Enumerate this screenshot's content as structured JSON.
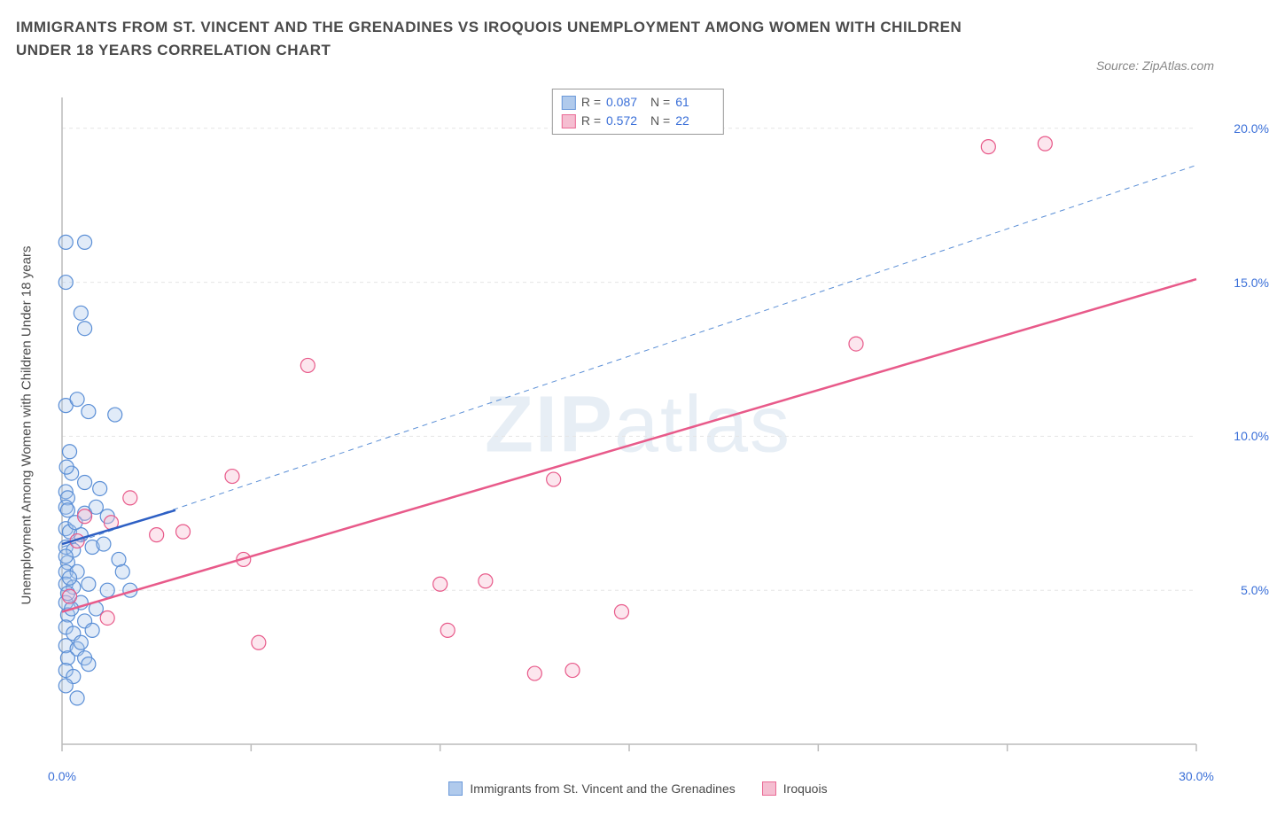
{
  "title": "IMMIGRANTS FROM ST. VINCENT AND THE GRENADINES VS IROQUOIS UNEMPLOYMENT AMONG WOMEN WITH CHILDREN UNDER 18 YEARS CORRELATION CHART",
  "source": "Source: ZipAtlas.com",
  "watermark_bold": "ZIP",
  "watermark_light": "atlas",
  "y_axis_label": "Unemployment Among Women with Children Under 18 years",
  "chart": {
    "type": "scatter",
    "xlim": [
      0,
      30
    ],
    "ylim": [
      0,
      21
    ],
    "x_ticks": [
      0,
      5,
      10,
      15,
      20,
      25,
      30
    ],
    "x_tick_labels": {
      "0": "0.0%",
      "30": "30.0%"
    },
    "y_ticks": [
      5,
      10,
      15,
      20
    ],
    "y_tick_labels": {
      "5": "5.0%",
      "10": "10.0%",
      "15": "15.0%",
      "20": "20.0%"
    },
    "grid_color": "#e5e5e5",
    "grid_dash": "4,4",
    "axis_color": "#bbbbbb",
    "background": "#ffffff",
    "marker_radius": 8,
    "marker_stroke_width": 1.2,
    "fill_opacity": 0.35,
    "series": [
      {
        "name": "Immigrants from St. Vincent and the Grenadines",
        "color_stroke": "#5b8fd6",
        "color_fill": "#a8c5ea",
        "R": "0.087",
        "N": "61",
        "trend_solid": {
          "x1": 0,
          "y1": 6.5,
          "x2": 3,
          "y2": 7.6,
          "width": 2.5,
          "color": "#2d5fc4"
        },
        "trend_dashed": {
          "x1": 0,
          "y1": 6.4,
          "x2": 30,
          "y2": 18.8,
          "width": 1,
          "color": "#5b8fd6",
          "dash": "6,5"
        },
        "points": [
          [
            0.1,
            16.3
          ],
          [
            0.6,
            16.3
          ],
          [
            0.1,
            15.0
          ],
          [
            0.5,
            14.0
          ],
          [
            0.6,
            13.5
          ],
          [
            0.1,
            11.0
          ],
          [
            0.7,
            10.8
          ],
          [
            1.4,
            10.7
          ],
          [
            0.2,
            9.5
          ],
          [
            0.1,
            8.2
          ],
          [
            0.15,
            8.0
          ],
          [
            0.6,
            8.5
          ],
          [
            1.0,
            8.3
          ],
          [
            0.1,
            7.7
          ],
          [
            0.15,
            7.6
          ],
          [
            0.6,
            7.5
          ],
          [
            0.9,
            7.7
          ],
          [
            1.2,
            7.4
          ],
          [
            0.1,
            7.0
          ],
          [
            0.2,
            6.9
          ],
          [
            0.5,
            6.8
          ],
          [
            0.1,
            6.4
          ],
          [
            0.3,
            6.3
          ],
          [
            0.8,
            6.4
          ],
          [
            1.1,
            6.5
          ],
          [
            1.5,
            6.0
          ],
          [
            0.15,
            5.9
          ],
          [
            0.1,
            5.6
          ],
          [
            0.4,
            5.6
          ],
          [
            1.6,
            5.6
          ],
          [
            0.1,
            5.2
          ],
          [
            0.3,
            5.1
          ],
          [
            0.7,
            5.2
          ],
          [
            1.2,
            5.0
          ],
          [
            1.8,
            5.0
          ],
          [
            0.1,
            4.6
          ],
          [
            0.5,
            4.6
          ],
          [
            0.9,
            4.4
          ],
          [
            0.15,
            4.2
          ],
          [
            0.6,
            4.0
          ],
          [
            0.1,
            3.8
          ],
          [
            0.3,
            3.6
          ],
          [
            0.8,
            3.7
          ],
          [
            0.1,
            3.2
          ],
          [
            0.4,
            3.1
          ],
          [
            0.15,
            2.8
          ],
          [
            0.6,
            2.8
          ],
          [
            0.1,
            2.4
          ],
          [
            0.3,
            2.2
          ],
          [
            0.1,
            1.9
          ],
          [
            0.4,
            1.5
          ],
          [
            0.1,
            6.1
          ],
          [
            0.35,
            7.2
          ],
          [
            0.25,
            8.8
          ],
          [
            0.15,
            4.9
          ],
          [
            0.5,
            3.3
          ],
          [
            0.7,
            2.6
          ],
          [
            0.2,
            5.4
          ],
          [
            0.12,
            9.0
          ],
          [
            0.4,
            11.2
          ],
          [
            0.25,
            4.4
          ]
        ]
      },
      {
        "name": "Iroquois",
        "color_stroke": "#e85a8a",
        "color_fill": "#f5b8cd",
        "R": "0.572",
        "N": "22",
        "trend_solid": {
          "x1": 0,
          "y1": 4.3,
          "x2": 30,
          "y2": 15.1,
          "width": 2.5,
          "color": "#e85a8a"
        },
        "points": [
          [
            0.6,
            7.4
          ],
          [
            1.3,
            7.2
          ],
          [
            1.8,
            8.0
          ],
          [
            0.4,
            6.6
          ],
          [
            2.5,
            6.8
          ],
          [
            3.2,
            6.9
          ],
          [
            1.2,
            4.1
          ],
          [
            5.2,
            3.3
          ],
          [
            4.5,
            8.7
          ],
          [
            6.5,
            12.3
          ],
          [
            4.8,
            6.0
          ],
          [
            10.0,
            5.2
          ],
          [
            11.2,
            5.3
          ],
          [
            10.2,
            3.7
          ],
          [
            12.5,
            2.3
          ],
          [
            13.5,
            2.4
          ],
          [
            14.8,
            4.3
          ],
          [
            13.0,
            8.6
          ],
          [
            21.0,
            13.0
          ],
          [
            24.5,
            19.4
          ],
          [
            26.0,
            19.5
          ],
          [
            0.2,
            4.8
          ]
        ]
      }
    ]
  },
  "legend_top": {
    "r_label": "R =",
    "n_label": "N ="
  },
  "colors": {
    "title": "#4a4a4a",
    "source": "#888888",
    "tick": "#3a6fd8"
  }
}
